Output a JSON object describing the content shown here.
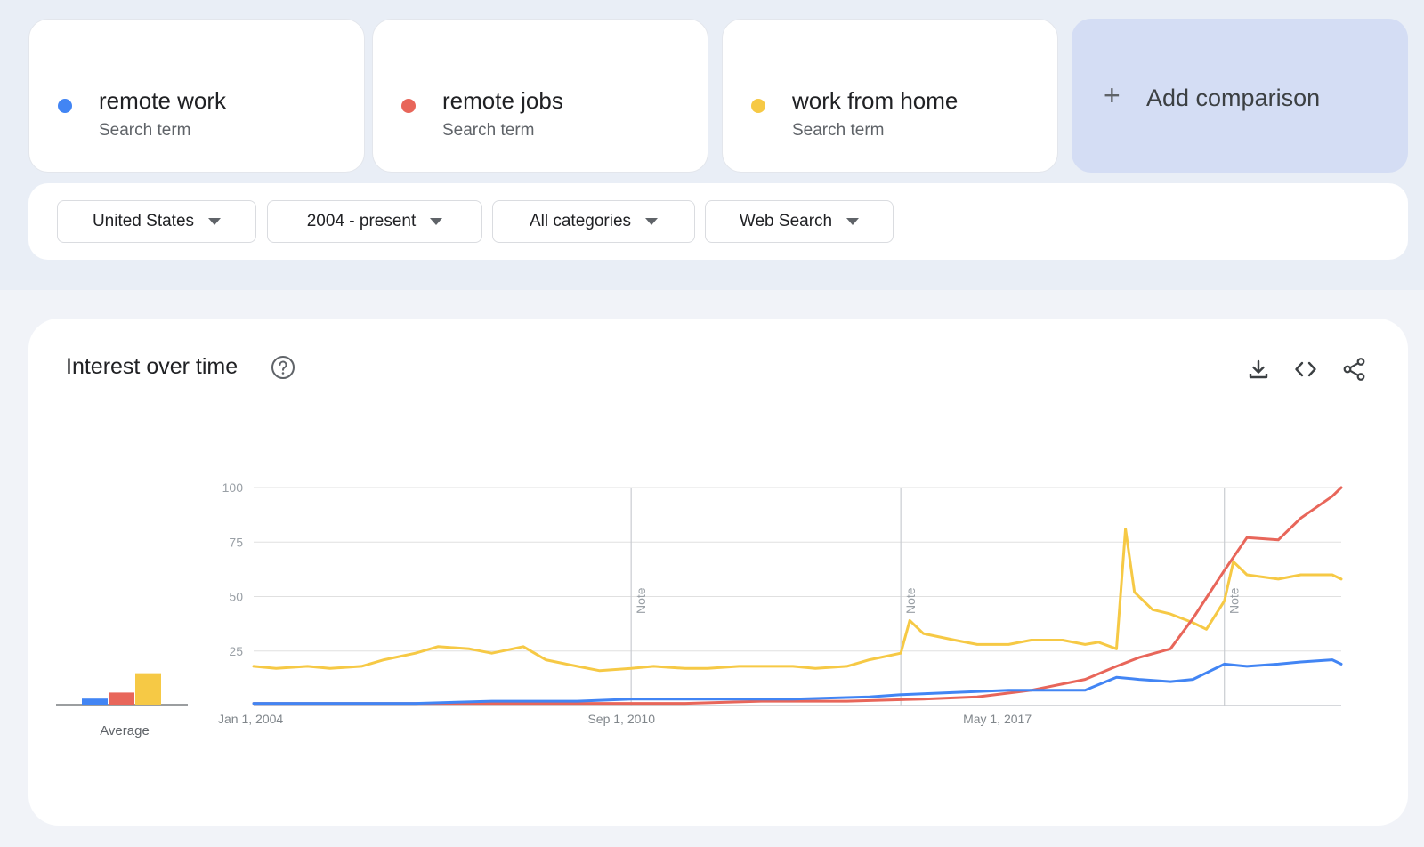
{
  "comparison_terms": [
    {
      "name": "remote work",
      "type": "Search term",
      "color": "#4285f4"
    },
    {
      "name": "remote jobs",
      "type": "Search term",
      "color": "#e8665a"
    },
    {
      "name": "work from home",
      "type": "Search term",
      "color": "#f6c945"
    }
  ],
  "add_comparison": {
    "label": "Add comparison",
    "icon": "plus-icon"
  },
  "filters": {
    "location": "United States",
    "time_range": "2004 - present",
    "category": "All categories",
    "search_type": "Web Search"
  },
  "interest_over_time": {
    "title": "Interest over time",
    "icons": [
      "help-icon",
      "download-icon",
      "embed-code-icon",
      "share-icon"
    ],
    "average_label": "Average",
    "note_label": "Note"
  },
  "chart_data": {
    "type": "line",
    "title": "Interest over time",
    "ylim": [
      0,
      100
    ],
    "y_ticks": [
      25,
      50,
      75,
      100
    ],
    "x_tick_labels": [
      "Jan 1, 2004",
      "Sep 1, 2010",
      "May 1, 2017"
    ],
    "x_range": [
      "2004-01",
      "2024-03"
    ],
    "notes_at": [
      "2011-01",
      "2016-01",
      "2022-01"
    ],
    "grid": true,
    "averages": [
      {
        "name": "remote work",
        "value": 5,
        "color": "#4285f4"
      },
      {
        "name": "remote jobs",
        "value": 10,
        "color": "#e8665a"
      },
      {
        "name": "work from home",
        "value": 26,
        "color": "#f6c945"
      }
    ],
    "series": [
      {
        "name": "remote work",
        "color": "#4285f4",
        "points": [
          [
            "2004-01",
            1
          ],
          [
            "2005-06",
            1
          ],
          [
            "2007-01",
            1
          ],
          [
            "2008-06",
            2
          ],
          [
            "2010-01",
            2
          ],
          [
            "2011-01",
            3
          ],
          [
            "2012-06",
            3
          ],
          [
            "2014-01",
            3
          ],
          [
            "2015-06",
            4
          ],
          [
            "2016-01",
            5
          ],
          [
            "2017-01",
            6
          ],
          [
            "2018-01",
            7
          ],
          [
            "2019-06",
            7
          ],
          [
            "2020-01",
            13
          ],
          [
            "2020-06",
            12
          ],
          [
            "2021-01",
            11
          ],
          [
            "2021-06",
            12
          ],
          [
            "2022-01",
            19
          ],
          [
            "2022-06",
            18
          ],
          [
            "2023-01",
            19
          ],
          [
            "2023-06",
            20
          ],
          [
            "2024-01",
            21
          ],
          [
            "2024-03",
            19
          ]
        ]
      },
      {
        "name": "remote jobs",
        "color": "#e8665a",
        "points": [
          [
            "2004-01",
            1
          ],
          [
            "2006-01",
            1
          ],
          [
            "2008-01",
            1
          ],
          [
            "2010-01",
            1
          ],
          [
            "2012-01",
            1
          ],
          [
            "2013-06",
            2
          ],
          [
            "2015-01",
            2
          ],
          [
            "2016-06",
            3
          ],
          [
            "2017-06",
            4
          ],
          [
            "2018-06",
            7
          ],
          [
            "2019-06",
            12
          ],
          [
            "2020-01",
            18
          ],
          [
            "2020-06",
            22
          ],
          [
            "2021-01",
            26
          ],
          [
            "2021-06",
            40
          ],
          [
            "2022-01",
            62
          ],
          [
            "2022-06",
            77
          ],
          [
            "2023-01",
            76
          ],
          [
            "2023-06",
            86
          ],
          [
            "2024-01",
            96
          ],
          [
            "2024-03",
            100
          ]
        ]
      },
      {
        "name": "work from home",
        "color": "#f6c945",
        "points": [
          [
            "2004-01",
            18
          ],
          [
            "2004-06",
            17
          ],
          [
            "2005-01",
            18
          ],
          [
            "2005-06",
            17
          ],
          [
            "2006-01",
            18
          ],
          [
            "2006-06",
            21
          ],
          [
            "2007-01",
            24
          ],
          [
            "2007-06",
            27
          ],
          [
            "2008-01",
            26
          ],
          [
            "2008-06",
            24
          ],
          [
            "2009-01",
            27
          ],
          [
            "2009-06",
            21
          ],
          [
            "2010-01",
            18
          ],
          [
            "2010-06",
            16
          ],
          [
            "2011-01",
            17
          ],
          [
            "2011-06",
            18
          ],
          [
            "2012-01",
            17
          ],
          [
            "2012-06",
            17
          ],
          [
            "2013-01",
            18
          ],
          [
            "2013-06",
            18
          ],
          [
            "2014-01",
            18
          ],
          [
            "2014-06",
            17
          ],
          [
            "2015-01",
            18
          ],
          [
            "2015-06",
            21
          ],
          [
            "2016-01",
            24
          ],
          [
            "2016-03",
            39
          ],
          [
            "2016-06",
            33
          ],
          [
            "2017-01",
            30
          ],
          [
            "2017-06",
            28
          ],
          [
            "2018-01",
            28
          ],
          [
            "2018-06",
            30
          ],
          [
            "2019-01",
            30
          ],
          [
            "2019-06",
            28
          ],
          [
            "2019-09",
            29
          ],
          [
            "2020-01",
            26
          ],
          [
            "2020-03",
            81
          ],
          [
            "2020-05",
            52
          ],
          [
            "2020-09",
            44
          ],
          [
            "2021-01",
            42
          ],
          [
            "2021-06",
            38
          ],
          [
            "2021-09",
            35
          ],
          [
            "2022-01",
            48
          ],
          [
            "2022-03",
            66
          ],
          [
            "2022-06",
            60
          ],
          [
            "2023-01",
            58
          ],
          [
            "2023-06",
            60
          ],
          [
            "2024-01",
            60
          ],
          [
            "2024-03",
            58
          ]
        ]
      }
    ]
  }
}
